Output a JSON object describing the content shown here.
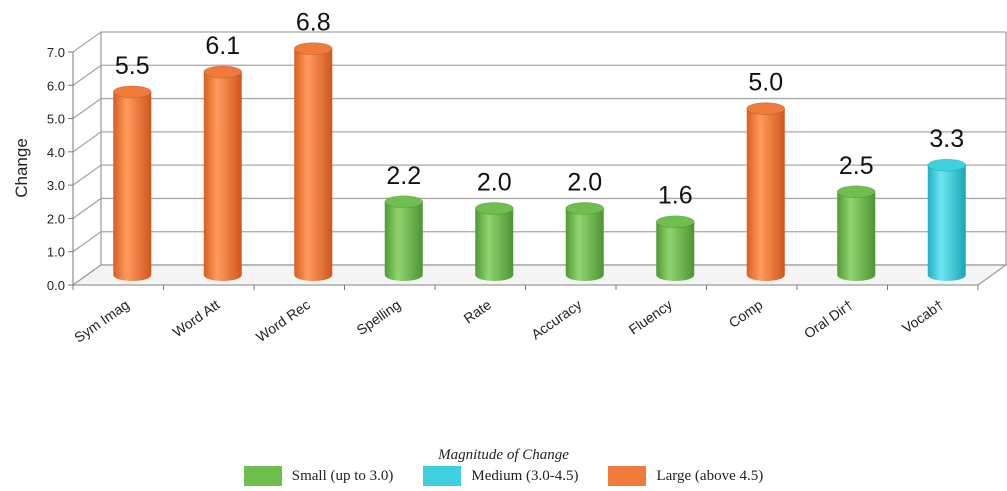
{
  "chart_data": {
    "type": "bar",
    "ylabel": "Change",
    "ylim": [
      0,
      7.0
    ],
    "yticks": [
      "0.0",
      "1.0",
      "2.0",
      "3.0",
      "4.0",
      "5.0",
      "6.0",
      "7.0"
    ],
    "grid": true,
    "categories": [
      "Sym Imag",
      "Word Att",
      "Word Rec",
      "Spelling",
      "Rate",
      "Accuracy",
      "Fluency",
      "Comp",
      "Oral Dir†",
      "Vocab†"
    ],
    "values": [
      5.5,
      6.1,
      6.8,
      2.2,
      2.0,
      2.0,
      1.6,
      5.0,
      2.5,
      3.3
    ],
    "value_labels": [
      "5.5",
      "6.1",
      "6.8",
      "2.2",
      "2.0",
      "2.0",
      "1.6",
      "5.0",
      "2.5",
      "3.3"
    ],
    "magnitude": [
      "large",
      "large",
      "large",
      "small",
      "small",
      "small",
      "small",
      "large",
      "small",
      "medium"
    ],
    "colors": {
      "small": "#6fbf4f",
      "medium": "#3fd0e0",
      "large": "#f07a3a"
    },
    "legend": {
      "title": "Magnitude of Change",
      "placement": "bottom-center",
      "items": [
        {
          "key": "small",
          "label": "Small (up to 3.0)"
        },
        {
          "key": "medium",
          "label": "Medium (3.0-4.5)"
        },
        {
          "key": "large",
          "label": "Large (above 4.5)"
        }
      ]
    }
  }
}
